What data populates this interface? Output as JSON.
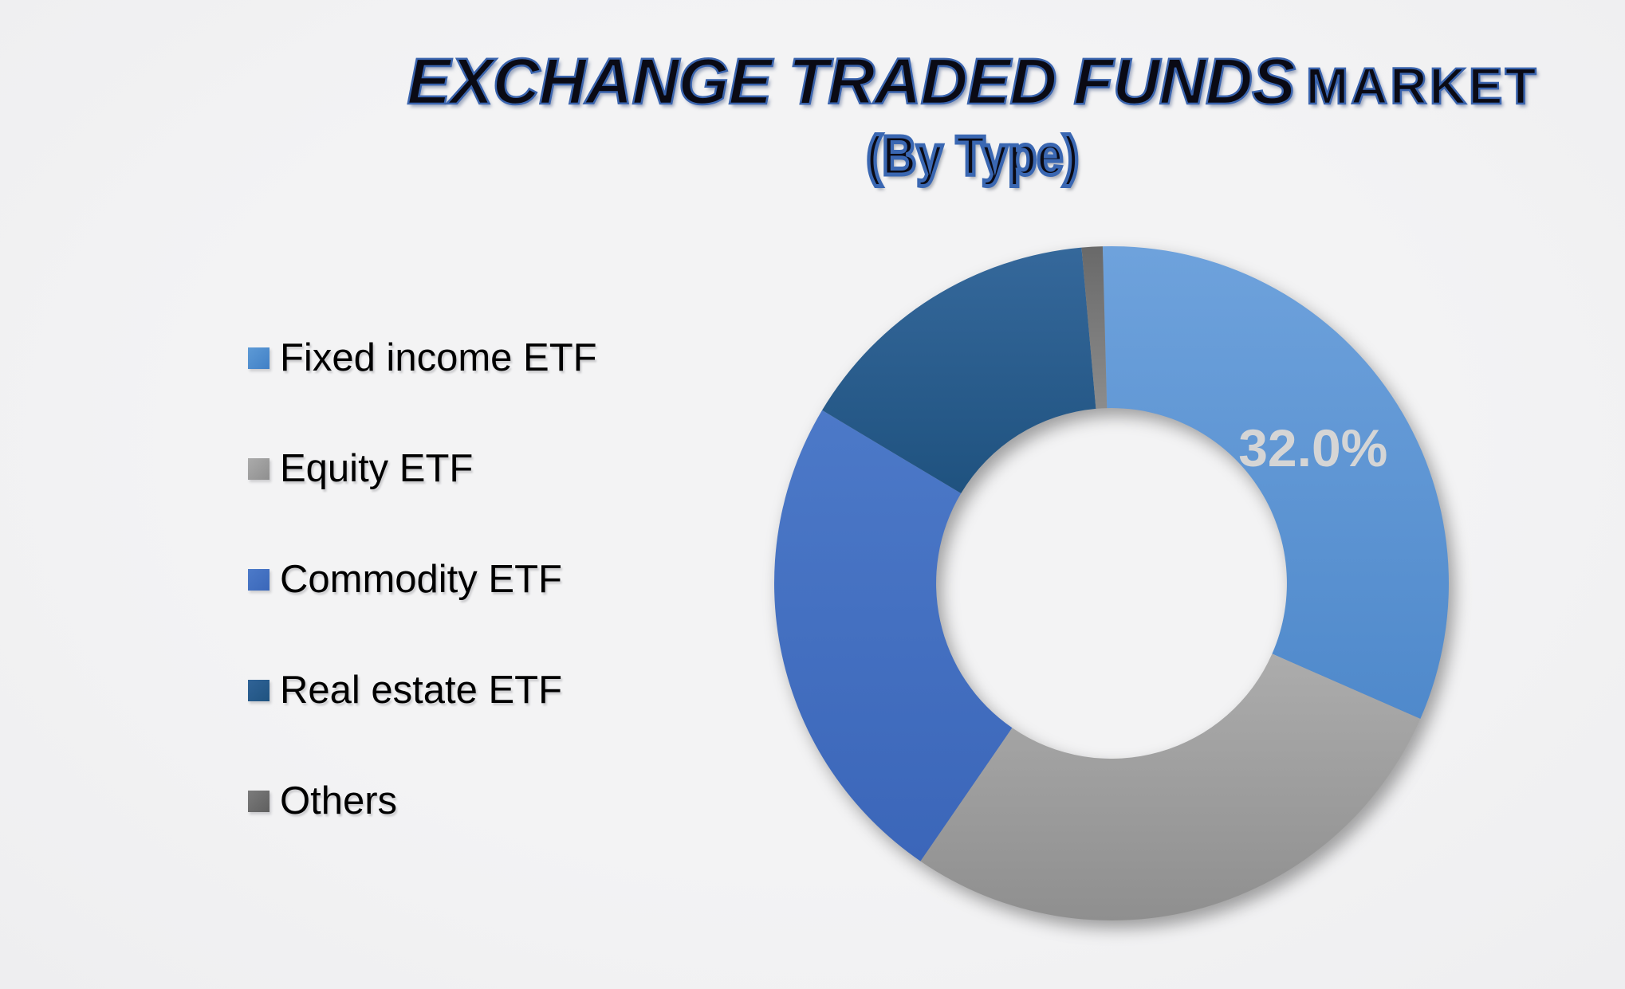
{
  "title": {
    "main": "EXCHANGE TRADED FUNDS",
    "suffix": "MARKET",
    "subtitle": "(By Type)"
  },
  "chart_data": {
    "type": "pie",
    "variant": "donut",
    "title": "EXCHANGE TRADED FUNDS MARKET",
    "subtitle": "(By Type)",
    "categories": [
      "Fixed income ETF",
      "Equity ETF",
      "Commodity ETF",
      "Real estate ETF",
      "Others"
    ],
    "values": [
      32.0,
      28.0,
      24.0,
      15.0,
      1.0
    ],
    "unit": "percent",
    "legend_position": "left",
    "start_angle_deg": -1.5,
    "inner_radius_ratio": 0.52,
    "background_color": "#f1f1f2",
    "data_label_color": "#d5d5d5",
    "slices": [
      {
        "name": "Fixed income ETF",
        "value_pct": 32.0,
        "data_label": "32.0%",
        "color_top": "#6ea2dc",
        "color_bottom": "#4f89cb",
        "swatch_top": "#5d9ad6",
        "swatch_bottom": "#4180c6"
      },
      {
        "name": "Equity ETF",
        "value_pct": 28.0,
        "data_label": "",
        "color_top": "#acacac",
        "color_bottom": "#8f8f8f",
        "swatch_top": "#ababab",
        "swatch_bottom": "#8f8f8f"
      },
      {
        "name": "Commodity ETF",
        "value_pct": 24.0,
        "data_label": "",
        "color_top": "#4c79c8",
        "color_bottom": "#3b66b9",
        "swatch_top": "#4c7ac9",
        "swatch_bottom": "#3a67b9"
      },
      {
        "name": "Real estate ETF",
        "value_pct": 15.0,
        "data_label": "",
        "color_top": "#35689b",
        "color_bottom": "#1f527f",
        "swatch_top": "#306397",
        "swatch_bottom": "#1f5380"
      },
      {
        "name": "Others",
        "value_pct": 1.0,
        "data_label": "",
        "color_top": "#696969",
        "color_bottom": "#8c8c8c",
        "swatch_top": "#7b7b7b",
        "swatch_bottom": "#5f5f5f"
      }
    ]
  }
}
